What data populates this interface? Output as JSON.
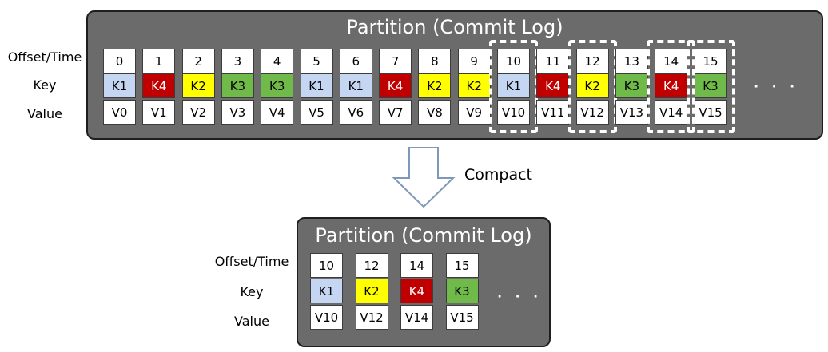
{
  "top": {
    "title": "Partition (Commit Log)",
    "row_labels": [
      "Offset/Time",
      "Key",
      "Value"
    ],
    "ellipsis": "· · ·",
    "records": [
      {
        "offset": "0",
        "key": "K1",
        "value": "V0"
      },
      {
        "offset": "1",
        "key": "K4",
        "value": "V1"
      },
      {
        "offset": "2",
        "key": "K2",
        "value": "V2"
      },
      {
        "offset": "3",
        "key": "K3",
        "value": "V3"
      },
      {
        "offset": "4",
        "key": "K3",
        "value": "V4"
      },
      {
        "offset": "5",
        "key": "K1",
        "value": "V5"
      },
      {
        "offset": "6",
        "key": "K1",
        "value": "V6"
      },
      {
        "offset": "7",
        "key": "K4",
        "value": "V7"
      },
      {
        "offset": "8",
        "key": "K2",
        "value": "V8"
      },
      {
        "offset": "9",
        "key": "K2",
        "value": "V9"
      },
      {
        "offset": "10",
        "key": "K1",
        "value": "V10",
        "retained": true
      },
      {
        "offset": "11",
        "key": "K4",
        "value": "V11"
      },
      {
        "offset": "12",
        "key": "K2",
        "value": "V12",
        "retained": true
      },
      {
        "offset": "13",
        "key": "K3",
        "value": "V13"
      },
      {
        "offset": "14",
        "key": "K4",
        "value": "V14",
        "retained": true
      },
      {
        "offset": "15",
        "key": "K3",
        "value": "V15",
        "retained": true
      }
    ]
  },
  "arrow": {
    "label": "Compact"
  },
  "bottom": {
    "title": "Partition (Commit Log)",
    "row_labels": [
      "Offset/Time",
      "Key",
      "Value"
    ],
    "ellipsis": "· · ·",
    "records": [
      {
        "offset": "10",
        "key": "K1",
        "value": "V10"
      },
      {
        "offset": "12",
        "key": "K2",
        "value": "V12"
      },
      {
        "offset": "14",
        "key": "K4",
        "value": "V14"
      },
      {
        "offset": "15",
        "key": "K3",
        "value": "V15"
      }
    ]
  },
  "key_colors": {
    "K1": {
      "bg": "#c5d6f2",
      "fg": "#000000"
    },
    "K2": {
      "bg": "#ffff00",
      "fg": "#000000"
    },
    "K3": {
      "bg": "#70ba4a",
      "fg": "#000000"
    },
    "K4": {
      "bg": "#c00000",
      "fg": "#ffffff"
    }
  }
}
